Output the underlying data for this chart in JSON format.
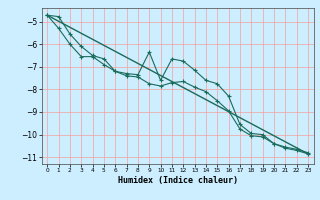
{
  "title": "",
  "xlabel": "Humidex (Indice chaleur)",
  "ylabel": "",
  "bg_color": "#cceeff",
  "grid_color": "#f5a0a0",
  "line_color": "#1a6b5a",
  "xlim": [
    -0.5,
    23.5
  ],
  "ylim": [
    -11.3,
    -4.4
  ],
  "xticks": [
    0,
    1,
    2,
    3,
    4,
    5,
    6,
    7,
    8,
    9,
    10,
    11,
    12,
    13,
    14,
    15,
    16,
    17,
    18,
    19,
    20,
    21,
    22,
    23
  ],
  "yticks": [
    -5,
    -6,
    -7,
    -8,
    -9,
    -10,
    -11
  ],
  "line1_x": [
    0,
    1,
    2,
    3,
    4,
    5,
    6,
    7,
    8,
    9,
    10,
    11,
    12,
    13,
    14,
    15,
    16,
    17,
    18,
    19,
    20,
    21,
    22,
    23
  ],
  "line1_y": [
    -4.72,
    -4.78,
    -5.55,
    -6.1,
    -6.5,
    -6.65,
    -7.2,
    -7.3,
    -7.35,
    -6.35,
    -7.6,
    -6.65,
    -6.75,
    -7.15,
    -7.6,
    -7.75,
    -8.3,
    -9.55,
    -9.95,
    -10.0,
    -10.4,
    -10.55,
    -10.65,
    -10.8
  ],
  "line2_x": [
    0,
    1,
    2,
    3,
    4,
    5,
    6,
    7,
    8,
    9,
    10,
    11,
    12,
    13,
    14,
    15,
    16,
    17,
    18,
    19,
    20,
    21,
    22,
    23
  ],
  "line2_y": [
    -4.72,
    -5.3,
    -6.0,
    -6.55,
    -6.55,
    -6.9,
    -7.2,
    -7.4,
    -7.45,
    -7.75,
    -7.85,
    -7.7,
    -7.65,
    -7.9,
    -8.1,
    -8.5,
    -8.95,
    -9.75,
    -10.05,
    -10.1,
    -10.4,
    -10.6,
    -10.7,
    -10.85
  ],
  "trend_x": [
    0,
    23
  ],
  "trend_y": [
    -4.72,
    -10.85
  ]
}
